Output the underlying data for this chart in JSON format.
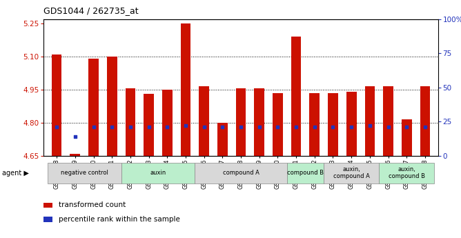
{
  "title": "GDS1044 / 262735_at",
  "samples": [
    "GSM25858",
    "GSM25859",
    "GSM25860",
    "GSM25861",
    "GSM25862",
    "GSM25863",
    "GSM25864",
    "GSM25865",
    "GSM25866",
    "GSM25867",
    "GSM25868",
    "GSM25869",
    "GSM25870",
    "GSM25871",
    "GSM25872",
    "GSM25873",
    "GSM25874",
    "GSM25875",
    "GSM25876",
    "GSM25877",
    "GSM25878"
  ],
  "transformed_counts": [
    5.11,
    4.658,
    5.09,
    5.1,
    4.955,
    4.93,
    4.95,
    5.25,
    4.965,
    4.8,
    4.955,
    4.955,
    4.935,
    5.19,
    4.935,
    4.935,
    4.94,
    4.965,
    4.965,
    4.815,
    4.965
  ],
  "percentile_ranks_pct": [
    21,
    14,
    21,
    21,
    21,
    21,
    21,
    22,
    21,
    21,
    21,
    21,
    21,
    21,
    21,
    21,
    21,
    22,
    21,
    21,
    21
  ],
  "ylim_left": [
    4.65,
    5.27
  ],
  "ylim_right": [
    0,
    100
  ],
  "yticks_left": [
    4.65,
    4.8,
    4.95,
    5.1,
    5.25
  ],
  "yticks_right": [
    0,
    25,
    50,
    75,
    100
  ],
  "bar_color": "#cc1100",
  "percentile_color": "#2233bb",
  "bar_bottom": 4.65,
  "groups": [
    {
      "label": "negative control",
      "start": 0,
      "end": 4,
      "color": "#d8d8d8"
    },
    {
      "label": "auxin",
      "start": 4,
      "end": 8,
      "color": "#bbeecc"
    },
    {
      "label": "compound A",
      "start": 8,
      "end": 13,
      "color": "#d8d8d8"
    },
    {
      "label": "compound B",
      "start": 13,
      "end": 15,
      "color": "#bbeecc"
    },
    {
      "label": "auxin,\ncompound A",
      "start": 15,
      "end": 18,
      "color": "#d8d8d8"
    },
    {
      "label": "auxin,\ncompound B",
      "start": 18,
      "end": 21,
      "color": "#bbeecc"
    }
  ],
  "legend_items": [
    {
      "color": "#cc1100",
      "label": "transformed count"
    },
    {
      "color": "#2233bb",
      "label": "percentile rank within the sample"
    }
  ]
}
